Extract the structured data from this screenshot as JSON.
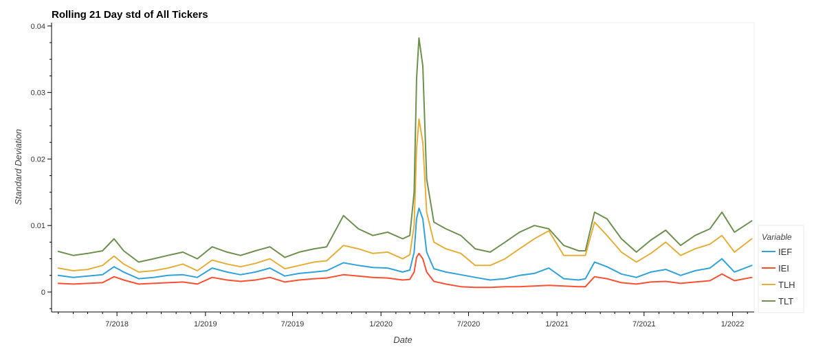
{
  "chart_data": {
    "type": "line",
    "title": "Rolling 21 Day std of All Tickers",
    "xlabel": "Date",
    "ylabel": "Standard Deviation",
    "xlim": [
      "2018-02-15",
      "2022-02-15"
    ],
    "ylim": [
      -0.003,
      0.0405
    ],
    "x_ticks": [
      {
        "date": "2018-07-01",
        "label": "7/2018"
      },
      {
        "date": "2019-01-01",
        "label": "1/2019"
      },
      {
        "date": "2019-07-01",
        "label": "7/2019"
      },
      {
        "date": "2020-01-01",
        "label": "1/2020"
      },
      {
        "date": "2020-07-01",
        "label": "7/2020"
      },
      {
        "date": "2021-01-01",
        "label": "1/2021"
      },
      {
        "date": "2021-07-01",
        "label": "7/2021"
      },
      {
        "date": "2022-01-01",
        "label": "1/2022"
      }
    ],
    "y_ticks": [
      {
        "value": 0,
        "label": "0"
      },
      {
        "value": 0.01,
        "label": "0.01"
      },
      {
        "value": 0.02,
        "label": "0.02"
      },
      {
        "value": 0.03,
        "label": "0.03"
      },
      {
        "value": 0.04,
        "label": "0.04"
      }
    ],
    "grid": false,
    "legend": {
      "title": "Variable",
      "placement": "outside-right-bottom"
    },
    "x": [
      "2018-03-01",
      "2018-04-01",
      "2018-05-01",
      "2018-06-01",
      "2018-06-25",
      "2018-07-15",
      "2018-08-15",
      "2018-09-15",
      "2018-10-15",
      "2018-11-15",
      "2018-12-15",
      "2019-01-15",
      "2019-02-15",
      "2019-03-15",
      "2019-04-15",
      "2019-05-15",
      "2019-06-15",
      "2019-07-15",
      "2019-08-15",
      "2019-09-10",
      "2019-10-15",
      "2019-11-15",
      "2019-12-15",
      "2020-01-15",
      "2020-02-15",
      "2020-03-01",
      "2020-03-10",
      "2020-03-15",
      "2020-03-20",
      "2020-03-28",
      "2020-04-05",
      "2020-04-20",
      "2020-05-15",
      "2020-06-15",
      "2020-07-15",
      "2020-08-15",
      "2020-09-15",
      "2020-10-15",
      "2020-11-15",
      "2020-12-15",
      "2021-01-15",
      "2021-02-15",
      "2021-03-01",
      "2021-03-20",
      "2021-04-15",
      "2021-05-15",
      "2021-06-15",
      "2021-07-15",
      "2021-08-15",
      "2021-09-15",
      "2021-10-15",
      "2021-11-15",
      "2021-12-10",
      "2022-01-05",
      "2022-02-10"
    ],
    "series": [
      {
        "name": "IEF",
        "color": "#30a2da",
        "values": [
          0.0025,
          0.0022,
          0.0024,
          0.0026,
          0.0038,
          0.003,
          0.002,
          0.0022,
          0.0025,
          0.0026,
          0.0022,
          0.0036,
          0.003,
          0.0026,
          0.003,
          0.0036,
          0.0024,
          0.0028,
          0.003,
          0.0032,
          0.0044,
          0.004,
          0.0037,
          0.0036,
          0.003,
          0.0033,
          0.006,
          0.011,
          0.0126,
          0.011,
          0.006,
          0.0035,
          0.003,
          0.0026,
          0.0022,
          0.0018,
          0.002,
          0.0025,
          0.0028,
          0.0036,
          0.002,
          0.0018,
          0.002,
          0.0045,
          0.0038,
          0.0027,
          0.0022,
          0.003,
          0.0034,
          0.0025,
          0.0032,
          0.0036,
          0.005,
          0.003,
          0.004
        ]
      },
      {
        "name": "IEI",
        "color": "#fc4f30",
        "values": [
          0.0013,
          0.0012,
          0.0013,
          0.0014,
          0.0023,
          0.0018,
          0.0012,
          0.0013,
          0.0014,
          0.0015,
          0.0012,
          0.0022,
          0.0018,
          0.0016,
          0.0018,
          0.0022,
          0.0015,
          0.0018,
          0.002,
          0.0021,
          0.0026,
          0.0024,
          0.0022,
          0.0021,
          0.0018,
          0.0019,
          0.003,
          0.0052,
          0.0058,
          0.005,
          0.003,
          0.0016,
          0.0012,
          0.0008,
          0.0007,
          0.0007,
          0.0008,
          0.0008,
          0.0009,
          0.001,
          0.0009,
          0.0008,
          0.0008,
          0.0023,
          0.002,
          0.0014,
          0.0012,
          0.0015,
          0.0016,
          0.0013,
          0.0015,
          0.0017,
          0.0027,
          0.0017,
          0.0022
        ]
      },
      {
        "name": "TLH",
        "color": "#e5ae38",
        "values": [
          0.0036,
          0.0032,
          0.0034,
          0.004,
          0.0054,
          0.0042,
          0.003,
          0.0032,
          0.0036,
          0.0042,
          0.0032,
          0.0048,
          0.0042,
          0.0038,
          0.0043,
          0.005,
          0.0035,
          0.004,
          0.0045,
          0.0047,
          0.007,
          0.0065,
          0.0058,
          0.006,
          0.005,
          0.0056,
          0.01,
          0.0215,
          0.026,
          0.0225,
          0.012,
          0.0075,
          0.0065,
          0.0058,
          0.004,
          0.004,
          0.005,
          0.0065,
          0.008,
          0.0092,
          0.0055,
          0.0055,
          0.0055,
          0.0105,
          0.0085,
          0.006,
          0.0045,
          0.0058,
          0.0075,
          0.0055,
          0.0065,
          0.0072,
          0.0085,
          0.006,
          0.008
        ]
      },
      {
        "name": "TLT",
        "color": "#6d904f",
        "values": [
          0.0061,
          0.0055,
          0.0058,
          0.0062,
          0.008,
          0.0062,
          0.0045,
          0.005,
          0.0055,
          0.006,
          0.005,
          0.0068,
          0.006,
          0.0055,
          0.0062,
          0.0068,
          0.0052,
          0.006,
          0.0065,
          0.0068,
          0.0115,
          0.0095,
          0.0085,
          0.009,
          0.008,
          0.0085,
          0.015,
          0.032,
          0.0382,
          0.034,
          0.017,
          0.0105,
          0.0095,
          0.0085,
          0.0065,
          0.006,
          0.0075,
          0.009,
          0.01,
          0.0095,
          0.007,
          0.0062,
          0.0062,
          0.012,
          0.011,
          0.008,
          0.006,
          0.0078,
          0.0093,
          0.007,
          0.0085,
          0.0095,
          0.012,
          0.009,
          0.0107
        ]
      }
    ]
  }
}
